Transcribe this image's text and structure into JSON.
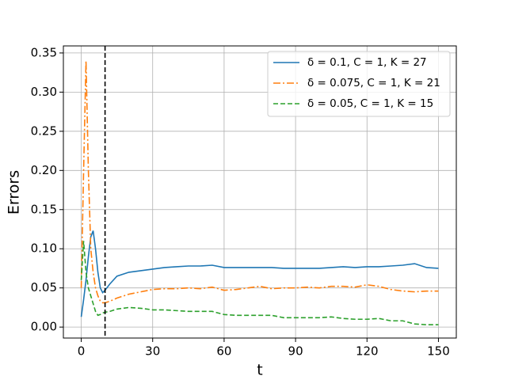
{
  "chart_data": {
    "type": "line",
    "xlabel": "t",
    "ylabel": "Errors",
    "x": [
      0,
      1,
      2,
      3,
      4,
      5,
      6,
      7,
      8,
      9,
      10,
      12,
      15,
      20,
      25,
      30,
      35,
      40,
      45,
      50,
      55,
      60,
      65,
      70,
      75,
      80,
      85,
      90,
      95,
      100,
      105,
      110,
      115,
      120,
      125,
      130,
      135,
      140,
      145,
      150
    ],
    "series": [
      {
        "name": "δ = 0.1, C = 1, K = 27",
        "color": "#1f77b4",
        "linestyle": "solid",
        "values": [
          0.013,
          0.035,
          0.06,
          0.09,
          0.115,
          0.123,
          0.1,
          0.07,
          0.05,
          0.044,
          0.047,
          0.055,
          0.065,
          0.07,
          0.072,
          0.074,
          0.076,
          0.077,
          0.078,
          0.078,
          0.079,
          0.076,
          0.076,
          0.076,
          0.076,
          0.076,
          0.075,
          0.075,
          0.075,
          0.075,
          0.076,
          0.077,
          0.076,
          0.077,
          0.077,
          0.078,
          0.079,
          0.081,
          0.076,
          0.075
        ]
      },
      {
        "name": "δ = 0.075, C = 1, K = 21",
        "color": "#ff7f0e",
        "linestyle": "dashdot",
        "values": [
          0.05,
          0.2,
          0.34,
          0.2,
          0.1,
          0.07,
          0.05,
          0.04,
          0.033,
          0.031,
          0.031,
          0.033,
          0.037,
          0.042,
          0.045,
          0.048,
          0.049,
          0.049,
          0.05,
          0.049,
          0.051,
          0.047,
          0.048,
          0.05,
          0.052,
          0.049,
          0.05,
          0.05,
          0.051,
          0.05,
          0.052,
          0.052,
          0.051,
          0.054,
          0.052,
          0.048,
          0.046,
          0.045,
          0.046,
          0.046
        ]
      },
      {
        "name": "δ = 0.05, C = 1, K = 15",
        "color": "#2ca02c",
        "linestyle": "dashed",
        "values": [
          0.06,
          0.11,
          0.07,
          0.05,
          0.04,
          0.03,
          0.02,
          0.015,
          0.016,
          0.018,
          0.019,
          0.02,
          0.023,
          0.025,
          0.024,
          0.022,
          0.022,
          0.021,
          0.02,
          0.02,
          0.02,
          0.016,
          0.015,
          0.015,
          0.015,
          0.015,
          0.012,
          0.012,
          0.012,
          0.012,
          0.013,
          0.011,
          0.01,
          0.01,
          0.011,
          0.008,
          0.008,
          0.004,
          0.003,
          0.003
        ]
      }
    ],
    "vline": {
      "x": 10,
      "color": "#000000"
    },
    "xlim": [
      -7.5,
      157.5
    ],
    "xticks": [
      0,
      30,
      60,
      90,
      120,
      150
    ],
    "ylim": [
      -0.014,
      0.359
    ],
    "yticks": [
      {
        "value": 0,
        "label": "0.00"
      },
      0.05,
      {
        "value": 0.1,
        "label": "0.10"
      },
      0.15,
      {
        "value": 0.2,
        "label": "0.20"
      },
      0.25,
      {
        "value": 0.3,
        "label": "0.30"
      },
      0.35
    ],
    "grid": true,
    "legend": "upper-right"
  }
}
